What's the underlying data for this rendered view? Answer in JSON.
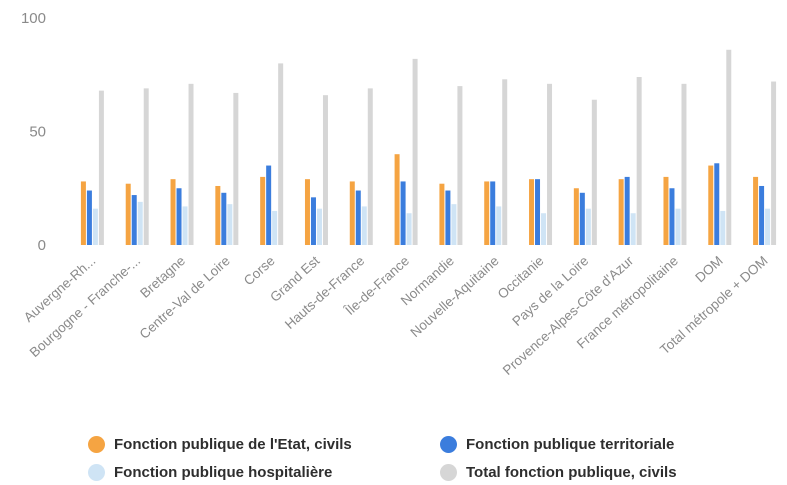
{
  "chart_data": {
    "type": "bar",
    "title": "",
    "xlabel": "",
    "ylabel": "",
    "ylim": [
      0,
      100
    ],
    "yticks": [
      0,
      50,
      100
    ],
    "grid": false,
    "legend_position": "bottom",
    "categories": [
      "Auvergne-Rh...",
      "Bourgogne - Franche-...",
      "Bretagne",
      "Centre-Val de Loire",
      "Corse",
      "Grand Est",
      "Hauts-de-France",
      "Île-de-France",
      "Normandie",
      "Nouvelle-Aquitaine",
      "Occitanie",
      "Pays de la Loire",
      "Provence-Alpes-Côte d'Azur",
      "France métropolitaine",
      "DOM",
      "Total métropole + DOM"
    ],
    "series": [
      {
        "name": "Fonction publique de l'Etat, civils",
        "color": "#f5a442",
        "values": [
          28,
          27,
          29,
          26,
          30,
          29,
          28,
          40,
          27,
          28,
          29,
          25,
          29,
          30,
          35,
          30
        ]
      },
      {
        "name": "Fonction publique territoriale",
        "color": "#3b7ddd",
        "values": [
          24,
          22,
          25,
          23,
          35,
          21,
          24,
          28,
          24,
          28,
          29,
          23,
          30,
          25,
          36,
          26
        ]
      },
      {
        "name": "Fonction publique hospitalière",
        "color": "#cfe4f5",
        "values": [
          16,
          19,
          17,
          18,
          15,
          16,
          17,
          14,
          18,
          17,
          14,
          16,
          14,
          16,
          15,
          16
        ]
      },
      {
        "name": "Total fonction publique, civils",
        "color": "#d6d6d6",
        "values": [
          68,
          69,
          71,
          67,
          80,
          66,
          69,
          82,
          70,
          73,
          71,
          64,
          74,
          71,
          86,
          72
        ]
      }
    ]
  }
}
